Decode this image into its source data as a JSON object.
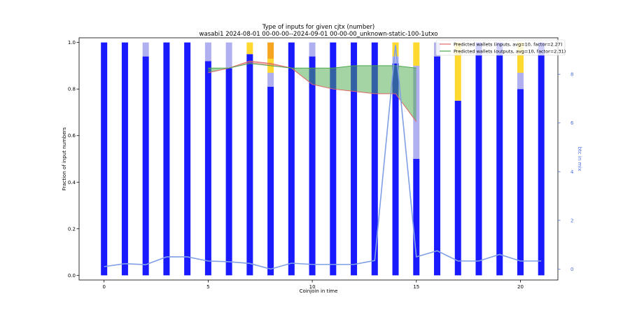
{
  "chart_data": {
    "type": "bar",
    "title": "Type of inputs for given cjtx (number)",
    "subtitle": "wasabi1 2024-08-01 00-00-00--2024-09-01 00-00-00_unknown-static-100-1utxo",
    "xlabel": "Coinjoin in time",
    "ylabel": "Fraction of input numbers",
    "ylabel_right": "btc in mix",
    "xlim": [
      -1.2,
      21.8
    ],
    "ylim": [
      -0.02,
      1.02
    ],
    "ylim_right": [
      -0.45,
      9.5
    ],
    "xticks": [
      "0",
      "5",
      "10",
      "15",
      "20"
    ],
    "yticks": [
      "0.0",
      "0.2",
      "0.4",
      "0.6",
      "0.8",
      "1.0"
    ],
    "yticks_right": [
      "0",
      "2",
      "4",
      "6",
      "8"
    ],
    "x": [
      0,
      1,
      2,
      3,
      4,
      5,
      6,
      7,
      8,
      9,
      10,
      11,
      12,
      13,
      14,
      15,
      16,
      17,
      18,
      19,
      20,
      21
    ],
    "stack_colors": [
      "#1a1aff",
      "#b0b0f0",
      "#ffd930",
      "#f7a520"
    ],
    "stacks": [
      {
        "values": [
          1.0,
          1.0,
          0.94,
          1.0,
          1.0,
          0.92,
          0.89,
          0.95,
          0.81,
          1.0,
          0.94,
          1.0,
          1.0,
          1.0,
          0.91,
          0.5,
          0.94,
          0.75,
          1.0,
          1.0,
          0.8,
          1.0
        ]
      },
      {
        "values": [
          0.0,
          0.0,
          0.06,
          0.0,
          0.0,
          0.08,
          0.11,
          0.0,
          0.06,
          0.0,
          0.06,
          0.0,
          0.0,
          0.0,
          0.03,
          0.4,
          0.06,
          0.0,
          0.0,
          0.0,
          0.07,
          0.0
        ]
      },
      {
        "values": [
          0.0,
          0.0,
          0.0,
          0.0,
          0.0,
          0.0,
          0.0,
          0.05,
          0.06,
          0.0,
          0.0,
          0.0,
          0.0,
          0.0,
          0.06,
          0.1,
          0.0,
          0.25,
          0.0,
          0.0,
          0.13,
          0.0
        ]
      },
      {
        "values": [
          0.0,
          0.0,
          0.0,
          0.0,
          0.0,
          0.0,
          0.0,
          0.0,
          0.07,
          0.0,
          0.0,
          0.0,
          0.0,
          0.0,
          0.0,
          0.0,
          0.0,
          0.0,
          0.0,
          0.0,
          0.0,
          0.0
        ]
      }
    ],
    "series": [
      {
        "name": "Predicted wallets (inputs, avg=10, factor=2.27)",
        "color": "#e06666",
        "x": [
          5,
          6,
          7,
          8,
          9,
          10,
          11,
          12,
          13,
          14,
          15
        ],
        "values": [
          0.87,
          0.89,
          0.92,
          0.91,
          0.89,
          0.82,
          0.8,
          0.79,
          0.78,
          0.78,
          0.66
        ]
      },
      {
        "name": "Predicted wallets (outputs, avg=10, factor=2.31)",
        "color": "#4aa84a",
        "x": [
          5,
          6,
          7,
          8,
          9,
          10,
          11,
          12,
          13,
          14,
          15
        ],
        "values": [
          0.89,
          0.89,
          0.91,
          0.9,
          0.89,
          0.89,
          0.89,
          0.9,
          0.9,
          0.9,
          0.89
        ]
      }
    ],
    "btc_series": {
      "color": "#7f9fe6",
      "values": [
        0.1,
        0.22,
        0.18,
        0.5,
        0.5,
        0.33,
        0.3,
        0.23,
        0.0,
        0.24,
        0.19,
        0.19,
        0.19,
        0.35,
        9.2,
        0.5,
        0.75,
        0.33,
        0.33,
        0.6,
        0.33,
        0.33
      ]
    }
  }
}
